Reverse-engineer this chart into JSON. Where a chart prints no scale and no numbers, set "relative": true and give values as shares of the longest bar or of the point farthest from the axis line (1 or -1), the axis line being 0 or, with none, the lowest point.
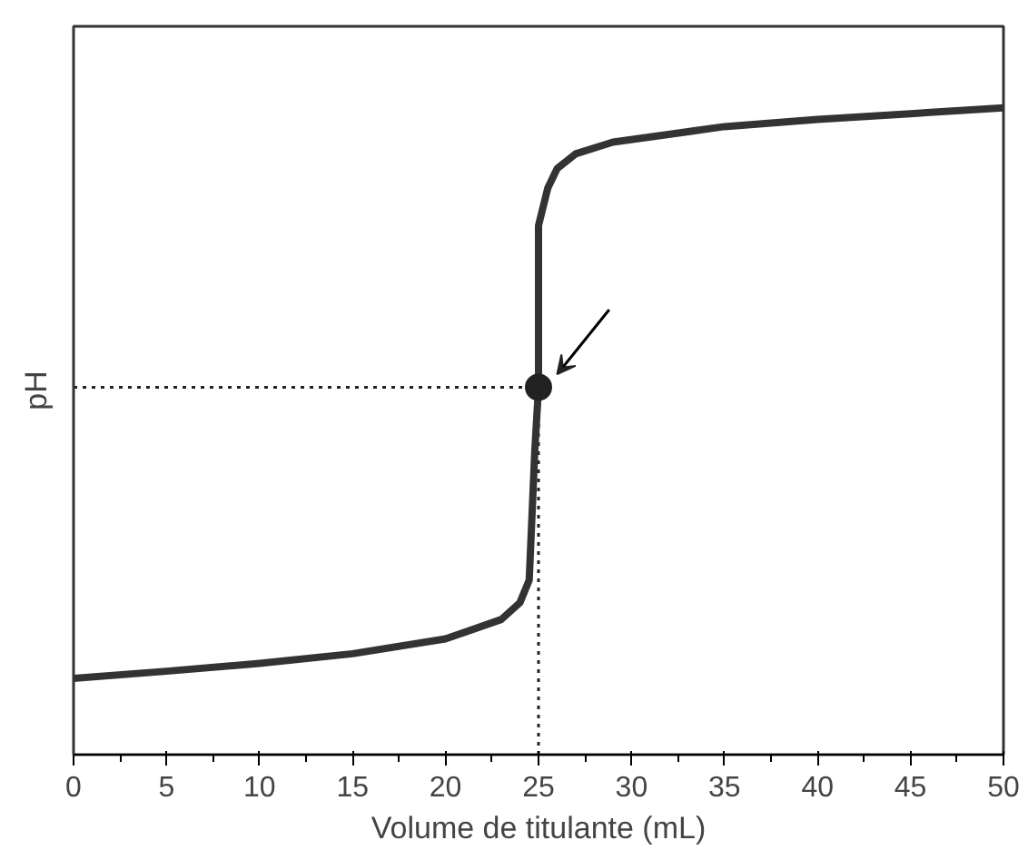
{
  "chart_data": {
    "type": "line",
    "relative": true,
    "xlabel": "Volume de titulante (mL)",
    "ylabel": "pH",
    "xlim": [
      0,
      50
    ],
    "xticks": [
      0,
      5,
      10,
      15,
      20,
      25,
      30,
      35,
      40,
      45,
      50
    ],
    "grid": false,
    "x": [
      0,
      5,
      10,
      15,
      20,
      23,
      24,
      24.5,
      24.8,
      25,
      25,
      25.5,
      26,
      27,
      29,
      32,
      35,
      40,
      45,
      50
    ],
    "series": [
      {
        "color": "#333333",
        "values": [
          0.118,
          0.129,
          0.141,
          0.156,
          0.179,
          0.209,
          0.235,
          0.27,
          0.47,
          0.568,
          0.818,
          0.876,
          0.906,
          0.929,
          0.947,
          0.959,
          0.971,
          0.982,
          0.991,
          1.0
        ]
      },
      {
        "type": "scatter",
        "color": "#222222",
        "marker": "circle",
        "x": [
          25
        ],
        "values": [
          0.568
        ]
      }
    ],
    "ref_lines": [
      {
        "axis": "y",
        "value": 0.568,
        "line_style": "dotted",
        "color": "#222222"
      },
      {
        "axis": "x",
        "value": 25,
        "line_style": "dotted",
        "color": "#222222"
      }
    ]
  }
}
